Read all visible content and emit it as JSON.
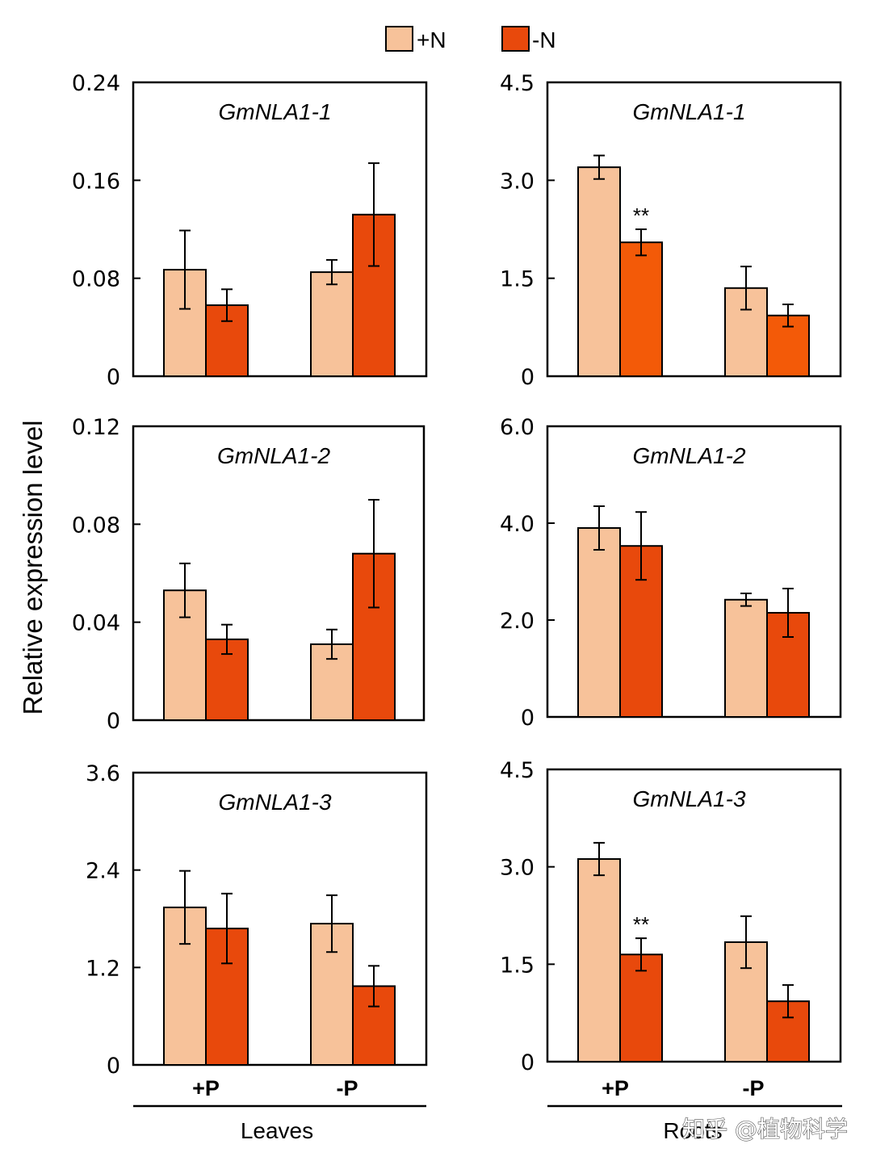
{
  "colors": {
    "plusN": "#f7c29a",
    "minusN": "#e8490c",
    "minusN_root1": "#f35a08",
    "axis": "#000000",
    "watermark": "#ffffff"
  },
  "legend": [
    {
      "label": "+N",
      "color": "#f7c29a"
    },
    {
      "label": "-N",
      "color": "#e8490c"
    }
  ],
  "ylabel": "Relative expression level",
  "tissues": [
    "Leaves",
    "Roots"
  ],
  "watermark": "知乎 @植物科学",
  "chart_data": [
    {
      "type": "bar",
      "title": "GmNLA1-1",
      "tissue": "Leaves",
      "categories": [
        "+P",
        "-P"
      ],
      "yticks": [
        "0",
        "0.08",
        "0.16",
        "0.24"
      ],
      "ylim": [
        0,
        0.24
      ],
      "series": [
        {
          "name": "+N",
          "values": [
            0.087,
            0.085
          ],
          "errors": [
            0.032,
            0.01
          ]
        },
        {
          "name": "-N",
          "values": [
            0.058,
            0.132
          ],
          "errors": [
            0.013,
            0.042
          ]
        }
      ],
      "annotations": []
    },
    {
      "type": "bar",
      "title": "GmNLA1-1",
      "tissue": "Roots",
      "categories": [
        "+P",
        "-P"
      ],
      "yticks": [
        "0",
        "1.5",
        "3.0",
        "4.5"
      ],
      "ylim": [
        0,
        4.5
      ],
      "series": [
        {
          "name": "+N",
          "values": [
            3.2,
            1.35
          ],
          "errors": [
            0.18,
            0.33
          ]
        },
        {
          "name": "-N",
          "values": [
            2.05,
            0.93
          ],
          "errors": [
            0.2,
            0.17
          ]
        }
      ],
      "annotations": [
        {
          "text": "**",
          "category": "+P",
          "series": "-N"
        }
      ]
    },
    {
      "type": "bar",
      "title": "GmNLA1-2",
      "tissue": "Leaves",
      "categories": [
        "+P",
        "-P"
      ],
      "yticks": [
        "0",
        "0.04",
        "0.08",
        "0.12"
      ],
      "ylim": [
        0,
        0.12
      ],
      "series": [
        {
          "name": "+N",
          "values": [
            0.053,
            0.031
          ],
          "errors": [
            0.011,
            0.006
          ]
        },
        {
          "name": "-N",
          "values": [
            0.033,
            0.068
          ],
          "errors": [
            0.006,
            0.022
          ]
        }
      ],
      "annotations": []
    },
    {
      "type": "bar",
      "title": "GmNLA1-2",
      "tissue": "Roots",
      "categories": [
        "+P",
        "-P"
      ],
      "yticks": [
        "0",
        "2.0",
        "4.0",
        "6.0"
      ],
      "ylim": [
        0,
        6.0
      ],
      "series": [
        {
          "name": "+N",
          "values": [
            3.9,
            2.42
          ],
          "errors": [
            0.45,
            0.13
          ]
        },
        {
          "name": "-N",
          "values": [
            3.53,
            2.15
          ],
          "errors": [
            0.7,
            0.5
          ]
        }
      ],
      "annotations": []
    },
    {
      "type": "bar",
      "title": "GmNLA1-3",
      "tissue": "Leaves",
      "categories": [
        "+P",
        "-P"
      ],
      "yticks": [
        "0",
        "1.2",
        "2.4",
        "3.6"
      ],
      "ylim": [
        0,
        3.6
      ],
      "series": [
        {
          "name": "+N",
          "values": [
            1.94,
            1.74
          ],
          "errors": [
            0.45,
            0.35
          ]
        },
        {
          "name": "-N",
          "values": [
            1.68,
            0.97
          ],
          "errors": [
            0.43,
            0.25
          ]
        }
      ],
      "annotations": []
    },
    {
      "type": "bar",
      "title": "GmNLA1-3",
      "tissue": "Roots",
      "categories": [
        "+P",
        "-P"
      ],
      "yticks": [
        "0",
        "1.5",
        "3.0",
        "4.5"
      ],
      "ylim": [
        0,
        4.5
      ],
      "series": [
        {
          "name": "+N",
          "values": [
            3.12,
            1.84
          ],
          "errors": [
            0.25,
            0.4
          ]
        },
        {
          "name": "-N",
          "values": [
            1.65,
            0.93
          ],
          "errors": [
            0.25,
            0.25
          ]
        }
      ],
      "annotations": [
        {
          "text": "**",
          "category": "+P",
          "series": "-N"
        }
      ]
    }
  ]
}
